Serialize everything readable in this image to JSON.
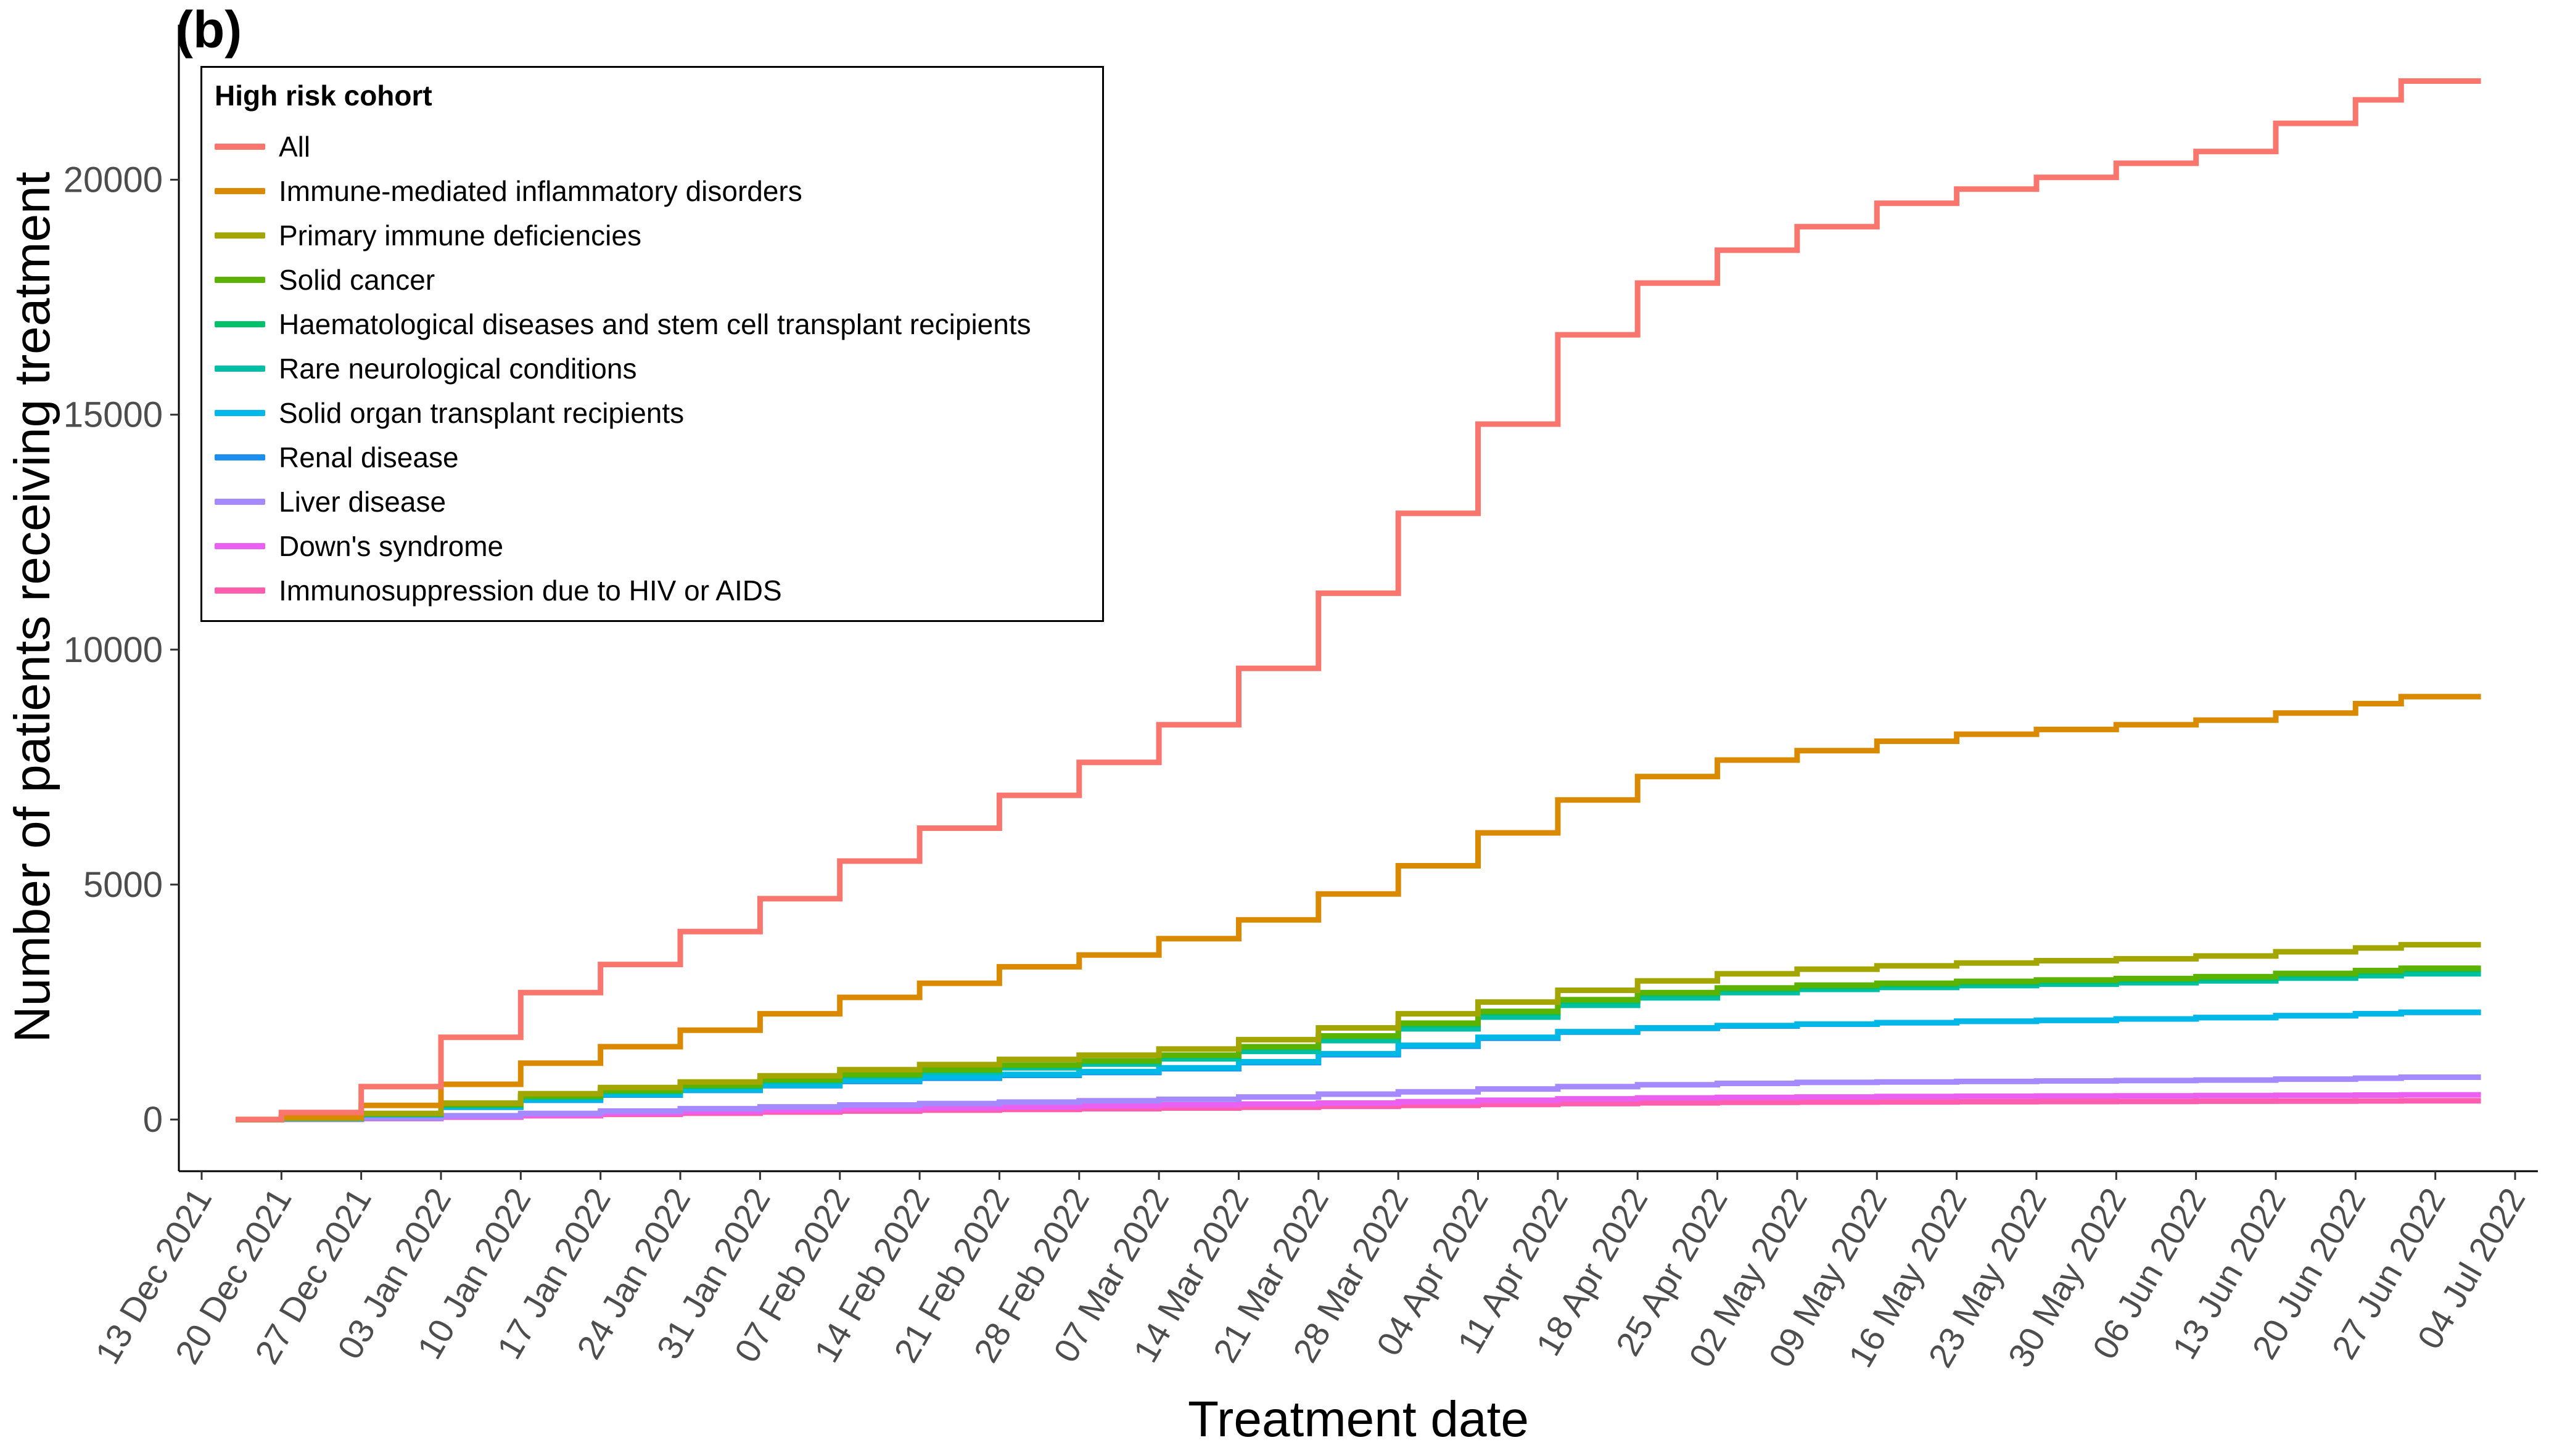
{
  "panel_label": "(b)",
  "chart_data": {
    "type": "line",
    "title": "",
    "xlabel": "Treatment date",
    "ylabel": "Number of patients receiving treatment",
    "x_tick_labels": [
      "13 Dec 2021",
      "20 Dec 2021",
      "27 Dec 2021",
      "03 Jan 2022",
      "10 Jan 2022",
      "17 Jan 2022",
      "24 Jan 2022",
      "31 Jan 2022",
      "07 Feb 2022",
      "14 Feb 2022",
      "21 Feb 2022",
      "28 Feb 2022",
      "07 Mar 2022",
      "14 Mar 2022",
      "21 Mar 2022",
      "28 Mar 2022",
      "04 Apr 2022",
      "11 Apr 2022",
      "18 Apr 2022",
      "25 Apr 2022",
      "02 May 2022",
      "09 May 2022",
      "16 May 2022",
      "23 May 2022",
      "30 May 2022",
      "06 Jun 2022",
      "13 Jun 2022",
      "20 Jun 2022",
      "27 Jun 2022",
      "04 Jul 2022"
    ],
    "y_ticks": [
      0,
      5000,
      10000,
      15000,
      20000
    ],
    "xlim": [
      "2021-12-11",
      "2022-07-06"
    ],
    "ylim": [
      -1100,
      23300
    ],
    "grid": false,
    "legend": {
      "title": "High risk cohort",
      "placement": "top-left"
    },
    "x": [
      "2021-12-16",
      "2021-12-20",
      "2021-12-27",
      "2022-01-03",
      "2022-01-10",
      "2022-01-17",
      "2022-01-24",
      "2022-01-31",
      "2022-02-07",
      "2022-02-14",
      "2022-02-21",
      "2022-02-28",
      "2022-03-07",
      "2022-03-14",
      "2022-03-21",
      "2022-03-28",
      "2022-04-04",
      "2022-04-11",
      "2022-04-18",
      "2022-04-25",
      "2022-05-02",
      "2022-05-09",
      "2022-05-16",
      "2022-05-23",
      "2022-05-30",
      "2022-06-06",
      "2022-06-13",
      "2022-06-20",
      "2022-06-24",
      "2022-06-27",
      "2022-07-01"
    ],
    "series": [
      {
        "name": "All",
        "color": "#F8766D",
        "values": [
          0,
          150,
          700,
          1750,
          2700,
          3300,
          4000,
          4700,
          5500,
          6200,
          6900,
          7600,
          8400,
          9600,
          11200,
          12900,
          14800,
          16700,
          17800,
          18500,
          19000,
          19500,
          19800,
          20050,
          20350,
          20600,
          21200,
          21700,
          22100,
          22100,
          22100
        ]
      },
      {
        "name": "Immune-mediated inflammatory disorders",
        "color": "#D98A00",
        "values": [
          0,
          60,
          300,
          750,
          1200,
          1550,
          1900,
          2250,
          2600,
          2900,
          3250,
          3500,
          3850,
          4250,
          4800,
          5400,
          6100,
          6800,
          7300,
          7650,
          7850,
          8050,
          8200,
          8300,
          8400,
          8500,
          8650,
          8850,
          9000,
          9000,
          9000
        ]
      },
      {
        "name": "Primary immune deficiencies",
        "color": "#A3A500",
        "values": [
          0,
          30,
          130,
          350,
          550,
          680,
          800,
          930,
          1060,
          1170,
          1280,
          1370,
          1500,
          1700,
          1950,
          2250,
          2500,
          2750,
          2950,
          3100,
          3200,
          3270,
          3330,
          3380,
          3420,
          3480,
          3570,
          3650,
          3720,
          3720,
          3720
        ]
      },
      {
        "name": "Solid cancer",
        "color": "#5BB300",
        "values": [
          0,
          25,
          120,
          320,
          500,
          620,
          730,
          850,
          960,
          1060,
          1160,
          1250,
          1370,
          1550,
          1780,
          2050,
          2300,
          2550,
          2700,
          2800,
          2860,
          2900,
          2940,
          2970,
          3000,
          3040,
          3110,
          3170,
          3220,
          3220,
          3220
        ]
      },
      {
        "name": "Haematological diseases and stem cell transplant recipients",
        "color": "#00C06B",
        "values": [
          0,
          25,
          115,
          310,
          490,
          610,
          720,
          840,
          950,
          1050,
          1150,
          1240,
          1350,
          1530,
          1760,
          2020,
          2270,
          2520,
          2670,
          2770,
          2830,
          2870,
          2910,
          2940,
          2970,
          3010,
          3080,
          3140,
          3190,
          3190,
          3190
        ]
      },
      {
        "name": "Rare neurological conditions",
        "color": "#00BFA5",
        "values": [
          0,
          25,
          110,
          300,
          470,
          590,
          700,
          810,
          920,
          1010,
          1100,
          1180,
          1290,
          1450,
          1680,
          1930,
          2180,
          2430,
          2590,
          2700,
          2770,
          2810,
          2850,
          2880,
          2910,
          2950,
          3010,
          3060,
          3100,
          3100,
          3100
        ]
      },
      {
        "name": "Solid organ transplant recipients",
        "color": "#00B8E7",
        "values": [
          0,
          20,
          100,
          270,
          420,
          530,
          630,
          730,
          830,
          900,
          960,
          1020,
          1100,
          1230,
          1400,
          1580,
          1750,
          1870,
          1950,
          2000,
          2030,
          2060,
          2090,
          2110,
          2140,
          2170,
          2210,
          2250,
          2280,
          2280,
          2280
        ]
      },
      {
        "name": "Renal disease",
        "color": "#1B8FEF",
        "values": [
          0,
          20,
          100,
          260,
          410,
          520,
          620,
          720,
          810,
          880,
          940,
          1000,
          1080,
          1210,
          1380,
          1560,
          1730,
          1860,
          1940,
          1990,
          2030,
          2060,
          2090,
          2110,
          2140,
          2170,
          2210,
          2250,
          2280,
          2280,
          2280
        ]
      },
      {
        "name": "Liver disease",
        "color": "#A58AFF",
        "values": [
          0,
          5,
          30,
          80,
          130,
          180,
          230,
          270,
          310,
          340,
          370,
          400,
          430,
          480,
          540,
          590,
          650,
          700,
          740,
          770,
          790,
          800,
          810,
          820,
          830,
          840,
          860,
          880,
          900,
          900,
          900
        ]
      },
      {
        "name": "Down's syndrome",
        "color": "#EA61F2",
        "values": [
          0,
          5,
          25,
          60,
          100,
          140,
          170,
          200,
          230,
          250,
          270,
          290,
          310,
          330,
          350,
          380,
          410,
          440,
          460,
          470,
          480,
          490,
          495,
          500,
          505,
          510,
          515,
          520,
          525,
          525,
          525
        ]
      },
      {
        "name": "Immunosuppression due to HIV or AIDS",
        "color": "#FF5EAE",
        "values": [
          0,
          4,
          20,
          50,
          80,
          110,
          135,
          160,
          180,
          200,
          215,
          230,
          245,
          260,
          280,
          300,
          320,
          340,
          355,
          365,
          370,
          375,
          380,
          383,
          386,
          390,
          393,
          396,
          400,
          400,
          400
        ]
      }
    ]
  }
}
